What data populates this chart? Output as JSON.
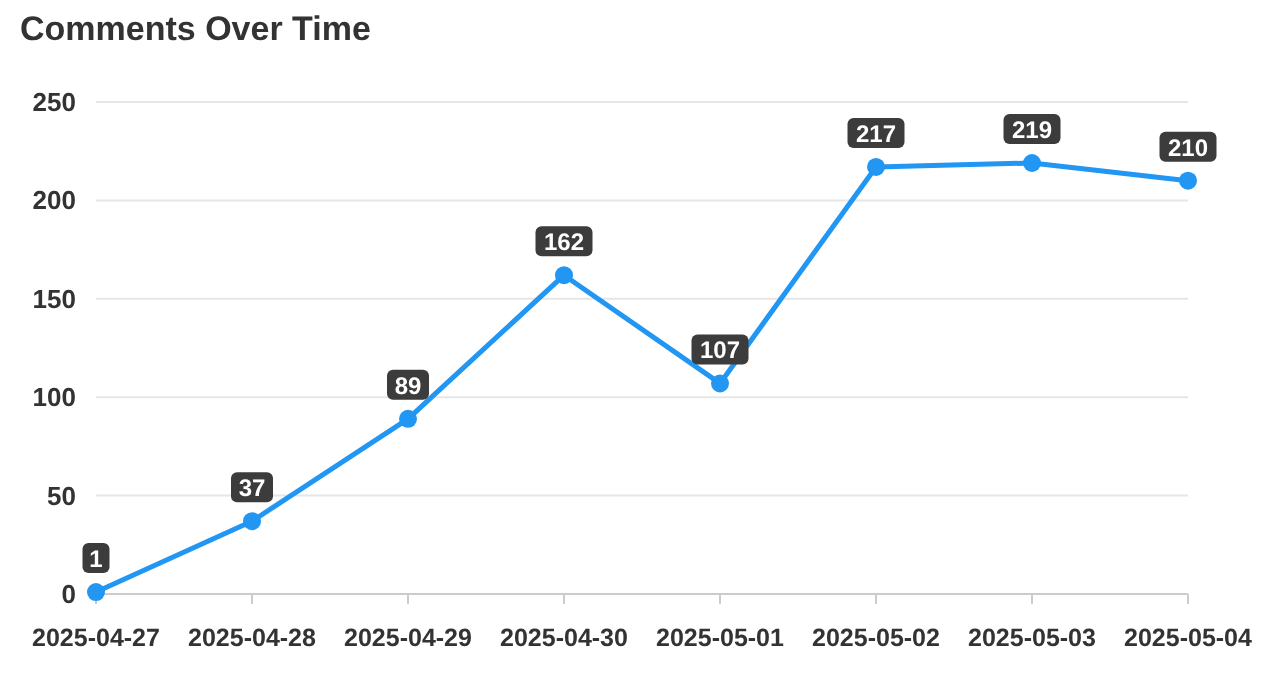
{
  "chart_data": {
    "type": "line",
    "title": "Comments Over Time",
    "categories": [
      "2025-04-27",
      "2025-04-28",
      "2025-04-29",
      "2025-04-30",
      "2025-05-01",
      "2025-05-02",
      "2025-05-03",
      "2025-05-04"
    ],
    "series": [
      {
        "color": "#2196f3",
        "values": [
          1,
          37,
          89,
          162,
          107,
          217,
          219,
          210
        ]
      }
    ],
    "ylim": [
      0,
      250
    ],
    "yticks": [
      0,
      50,
      100,
      150,
      200,
      250
    ],
    "grid": "y",
    "marker": "circle",
    "line_style": "solid",
    "data_labels": true
  }
}
